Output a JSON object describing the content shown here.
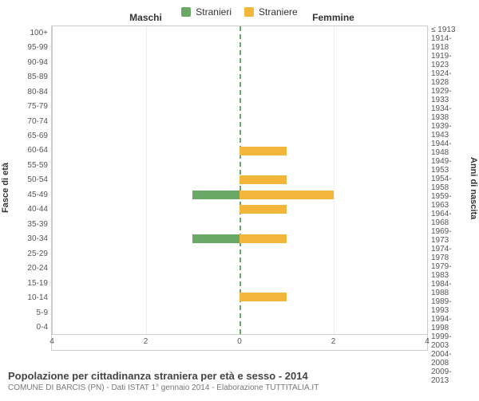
{
  "legend": {
    "male": {
      "label": "Stranieri",
      "color": "#6aa866"
    },
    "female": {
      "label": "Straniere",
      "color": "#f2b63a"
    }
  },
  "headers": {
    "left": "Maschi",
    "right": "Femmine"
  },
  "axis_titles": {
    "left": "Fasce di età",
    "right": "Anni di nascita"
  },
  "x": {
    "min": 0,
    "max": 4,
    "ticks": [
      4,
      2,
      0,
      2,
      4
    ]
  },
  "colors": {
    "male_bar": "#6aa866",
    "female_bar": "#f2b63a",
    "grid": "#eeeeee",
    "midline": "#6a9a6a",
    "axis": "#cccccc",
    "text": "#333333",
    "subtext": "#777777",
    "bg": "#ffffff"
  },
  "rows": [
    {
      "age": "100+",
      "cohort": "≤ 1913",
      "m": 0,
      "f": 0
    },
    {
      "age": "95-99",
      "cohort": "1914-1918",
      "m": 0,
      "f": 0
    },
    {
      "age": "90-94",
      "cohort": "1919-1923",
      "m": 0,
      "f": 0
    },
    {
      "age": "85-89",
      "cohort": "1924-1928",
      "m": 0,
      "f": 0
    },
    {
      "age": "80-84",
      "cohort": "1929-1933",
      "m": 0,
      "f": 0
    },
    {
      "age": "75-79",
      "cohort": "1934-1938",
      "m": 0,
      "f": 0
    },
    {
      "age": "70-74",
      "cohort": "1939-1943",
      "m": 0,
      "f": 0
    },
    {
      "age": "65-69",
      "cohort": "1944-1948",
      "m": 0,
      "f": 0
    },
    {
      "age": "60-64",
      "cohort": "1949-1953",
      "m": 0,
      "f": 1
    },
    {
      "age": "55-59",
      "cohort": "1954-1958",
      "m": 0,
      "f": 0
    },
    {
      "age": "50-54",
      "cohort": "1959-1963",
      "m": 0,
      "f": 1
    },
    {
      "age": "45-49",
      "cohort": "1964-1968",
      "m": 1,
      "f": 2
    },
    {
      "age": "40-44",
      "cohort": "1969-1973",
      "m": 0,
      "f": 1
    },
    {
      "age": "35-39",
      "cohort": "1974-1978",
      "m": 0,
      "f": 0
    },
    {
      "age": "30-34",
      "cohort": "1979-1983",
      "m": 1,
      "f": 1
    },
    {
      "age": "25-29",
      "cohort": "1984-1988",
      "m": 0,
      "f": 0
    },
    {
      "age": "20-24",
      "cohort": "1989-1993",
      "m": 0,
      "f": 0
    },
    {
      "age": "15-19",
      "cohort": "1994-1998",
      "m": 0,
      "f": 0
    },
    {
      "age": "10-14",
      "cohort": "1999-2003",
      "m": 0,
      "f": 1
    },
    {
      "age": "5-9",
      "cohort": "2004-2008",
      "m": 0,
      "f": 0
    },
    {
      "age": "0-4",
      "cohort": "2009-2013",
      "m": 0,
      "f": 0
    }
  ],
  "footer": {
    "title": "Popolazione per cittadinanza straniera per età e sesso - 2014",
    "subtitle": "COMUNE DI BARCIS (PN) - Dati ISTAT 1° gennaio 2014 - Elaborazione TUTTITALIA.IT"
  }
}
